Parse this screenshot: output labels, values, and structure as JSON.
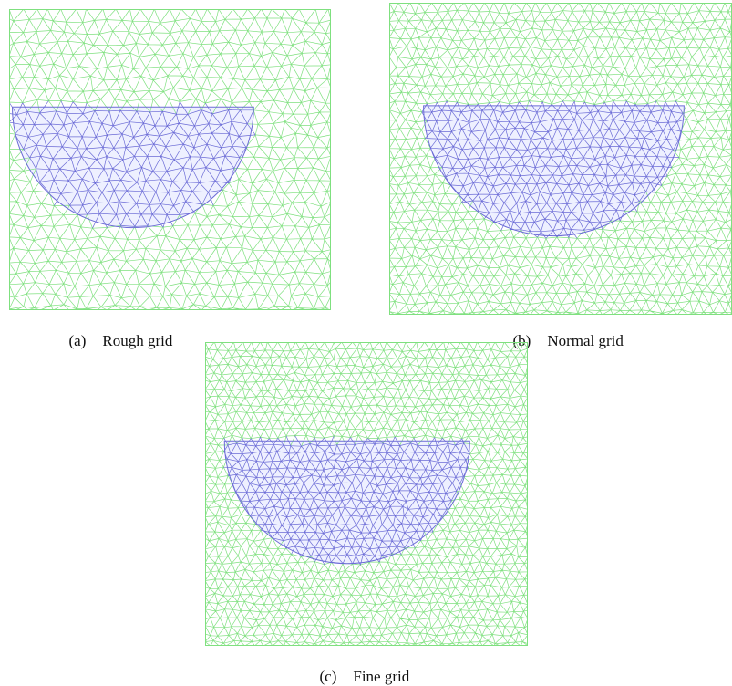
{
  "figure": {
    "panels": [
      {
        "letter": "(a)",
        "label": "Rough grid",
        "mesh_density": "coarse",
        "outer_region_color": "#7fe07f",
        "inner_region_color": "#6b6bd6"
      },
      {
        "letter": "(b)",
        "label": "Normal grid",
        "mesh_density": "medium",
        "outer_region_color": "#7fe07f",
        "inner_region_color": "#6b6bd6"
      },
      {
        "letter": "(c)",
        "label": "Fine grid",
        "mesh_density": "fine",
        "outer_region_color": "#7fe07f",
        "inner_region_color": "#6b6bd6"
      }
    ]
  }
}
